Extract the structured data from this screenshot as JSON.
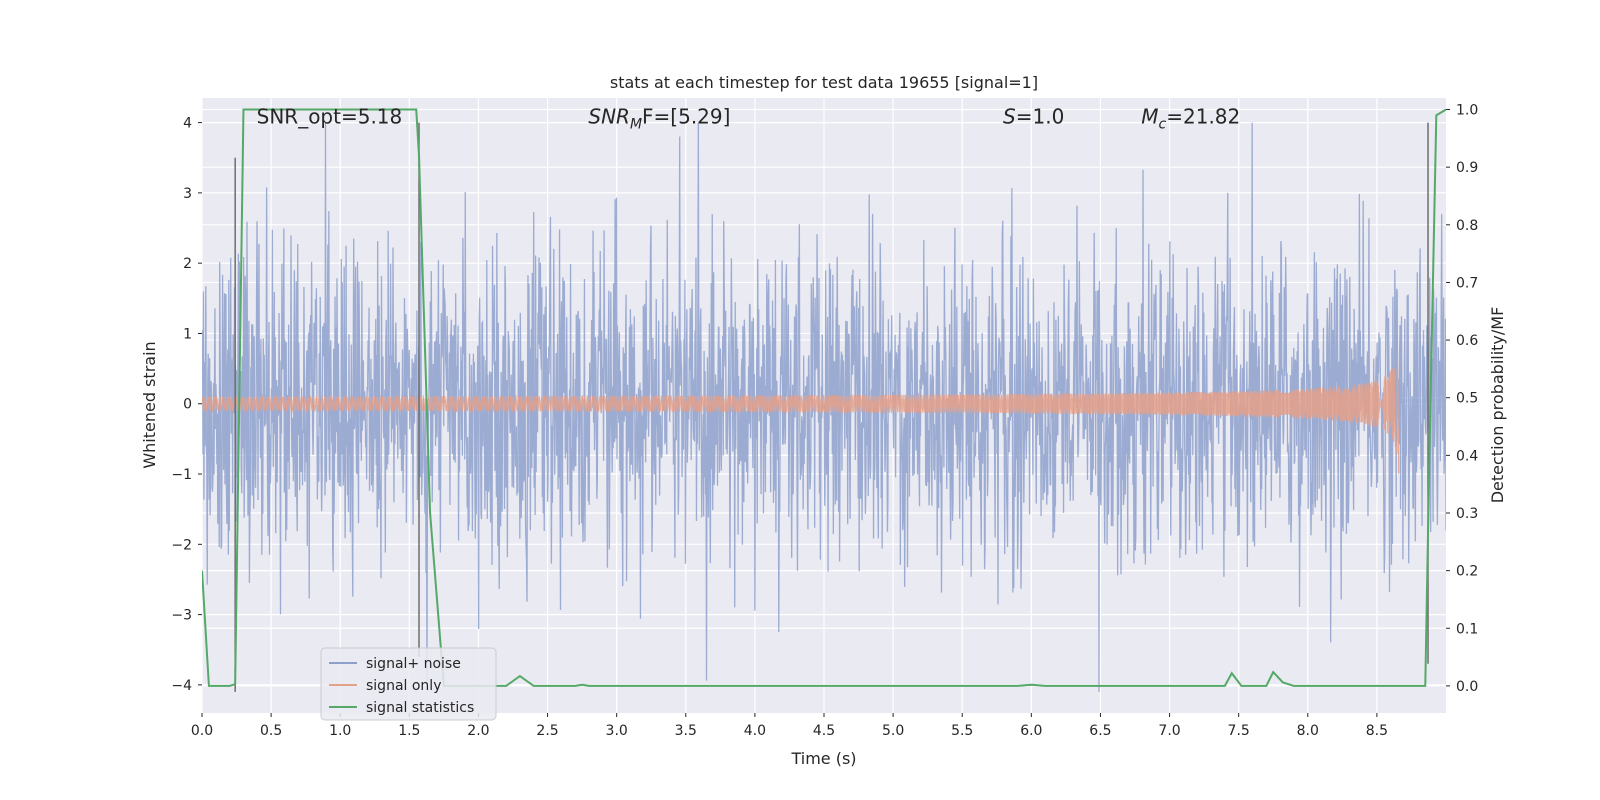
{
  "chart_data": {
    "type": "line",
    "title": "stats at each timestep for test data 19655 [signal=1]",
    "xlabel": "Time (s)",
    "ylabel": "Whitened strain",
    "y2label": "Detection probability/MF",
    "xlim": [
      0.0,
      9.0
    ],
    "ylim": [
      -4.4,
      4.35
    ],
    "y2lim": [
      -0.047,
      1.02
    ],
    "x_ticks": [
      0.0,
      0.5,
      1.0,
      1.5,
      2.0,
      2.5,
      3.0,
      3.5,
      4.0,
      4.5,
      5.0,
      5.5,
      6.0,
      6.5,
      7.0,
      7.5,
      8.0,
      8.5
    ],
    "x_tick_labels": [
      "0.0",
      "0.5",
      "1.0",
      "1.5",
      "2.0",
      "2.5",
      "3.0",
      "3.5",
      "4.0",
      "4.5",
      "5.0",
      "5.5",
      "6.0",
      "6.5",
      "7.0",
      "7.5",
      "8.0",
      "8.5"
    ],
    "y_ticks": [
      -4,
      -3,
      -2,
      -1,
      0,
      1,
      2,
      3,
      4
    ],
    "y_tick_labels": [
      "−4",
      "−3",
      "−2",
      "−1",
      "0",
      "1",
      "2",
      "3",
      "4"
    ],
    "y2_ticks": [
      0.0,
      0.1,
      0.2,
      0.3,
      0.4,
      0.5,
      0.6,
      0.7,
      0.8,
      0.9,
      1.0
    ],
    "y2_tick_labels": [
      "0.0",
      "0.1",
      "0.2",
      "0.3",
      "0.4",
      "0.5",
      "0.6",
      "0.7",
      "0.8",
      "0.9",
      "1.0"
    ],
    "annotations": [
      {
        "x": 0.2,
        "y": 4.0,
        "text": "SNR_opt=5.18",
        "italic_prefix": "",
        "sub": "",
        "rest": ""
      },
      {
        "x": 2.6,
        "y": 4.0,
        "text": "",
        "italic_prefix": "SNR",
        "sub": "M",
        "rest": "F=[5.29]"
      },
      {
        "x": 5.6,
        "y": 4.0,
        "text": "",
        "italic_prefix": "S",
        "sub": "",
        "rest": "=1.0"
      },
      {
        "x": 6.6,
        "y": 4.0,
        "text": "",
        "italic_prefix": "M",
        "sub": "c",
        "rest": "=21.82"
      }
    ],
    "series": [
      {
        "name": "signal+ noise",
        "color": "#8da0cb",
        "kind": "noise",
        "x_range": [
          0.0,
          9.0
        ],
        "approx_envelope": [
          -4.0,
          4.0
        ],
        "description_values": [
          2.4,
          -2.3,
          3.5,
          -1.8,
          4.0,
          -3.4,
          3.6,
          -4.0,
          3.7,
          -3.6,
          2.8
        ]
      },
      {
        "name": "signal only",
        "color": "#e5a08a",
        "kind": "chirp",
        "x_range": [
          0.0,
          8.66
        ],
        "peak_amplitude": 1.15
      },
      {
        "name": "signal statistics",
        "color": "#55a868",
        "axis": "right",
        "x": [
          0.0,
          0.05,
          0.2,
          0.24,
          0.3,
          1.55,
          1.57,
          1.65,
          1.75,
          2.2,
          2.3,
          2.4,
          2.7,
          2.75,
          2.8,
          5.9,
          6.0,
          6.1,
          7.4,
          7.45,
          7.52,
          7.7,
          7.75,
          7.82,
          7.9,
          8.85,
          8.88,
          8.93,
          9.0
        ],
        "y": [
          0.2,
          0.0,
          0.0,
          0.003,
          1.0,
          1.0,
          0.92,
          0.3,
          0.0,
          0.0,
          0.017,
          0.0,
          0.0,
          0.002,
          0.0,
          0.0,
          0.002,
          0.0,
          0.0,
          0.022,
          0.0,
          0.0,
          0.024,
          0.006,
          0.0,
          0.0,
          0.4,
          0.99,
          1.0
        ]
      }
    ],
    "vertical_lines": [
      {
        "x": 0.24,
        "y_from": -4.1,
        "y_to": 3.5,
        "color": "#6e6e6e"
      },
      {
        "x": 1.57,
        "y_from": -3.6,
        "y_to": 4.0,
        "color": "#6e6e6e"
      },
      {
        "x": 8.87,
        "y_from": -3.7,
        "y_to": 4.0,
        "color": "#6e6e6e"
      }
    ],
    "legend": {
      "placement": "lower-left",
      "entries": [
        "signal+ noise",
        "signal only",
        "signal statistics"
      ]
    }
  }
}
